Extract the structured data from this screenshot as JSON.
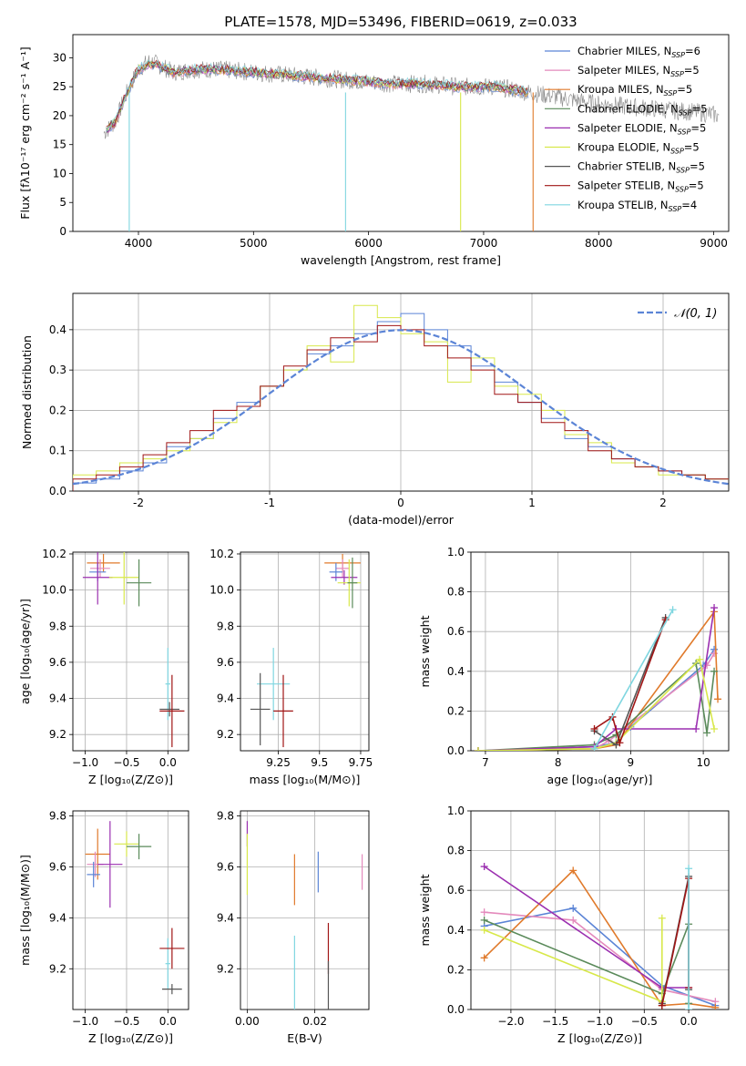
{
  "title": "PLATE=1578, MJD=53496, FIBERID=0619, z=0.033",
  "colors": {
    "Chabrier MILES": "#5b84d6",
    "Salpeter MILES": "#e48abc",
    "Kroupa MILES": "#e07a2b",
    "Chabrier ELODIE": "#5a8a5a",
    "Salpeter ELODIE": "#9b2fb0",
    "Kroupa ELODIE": "#d8e84a",
    "Chabrier STELIB": "#555555",
    "Salpeter STELIB": "#a01515",
    "Kroupa STELIB": "#7fd6e0"
  },
  "chart_data": [
    {
      "id": "spectrum",
      "type": "line",
      "xlabel": "wavelength [Angstrom, rest frame]",
      "ylabel": "Flux [fλ10⁻¹⁷ erg cm⁻² s⁻¹ A⁻¹]",
      "xlim": [
        3430,
        9130
      ],
      "ylim": [
        0,
        34
      ],
      "xticks": [
        4000,
        5000,
        6000,
        7000,
        8000,
        9000
      ],
      "yticks": [
        0,
        5,
        10,
        15,
        20,
        25,
        30
      ],
      "legend_position": "top-right",
      "legend": [
        {
          "name": "Chabrier MILES",
          "label": "Chabrier MILES, N",
          "sub": "SSP",
          "tail": "=6"
        },
        {
          "name": "Salpeter MILES",
          "label": "Salpeter MILES, N",
          "sub": "SSP",
          "tail": "=5"
        },
        {
          "name": "Kroupa MILES",
          "label": "Kroupa MILES, N",
          "sub": "SSP",
          "tail": "=5"
        },
        {
          "name": "Chabrier ELODIE",
          "label": "Chabrier ELODIE, N",
          "sub": "SSP",
          "tail": "=5"
        },
        {
          "name": "Salpeter ELODIE",
          "label": "Salpeter ELODIE, N",
          "sub": "SSP",
          "tail": "=5"
        },
        {
          "name": "Kroupa ELODIE",
          "label": "Kroupa ELODIE, N",
          "sub": "SSP",
          "tail": "=5"
        },
        {
          "name": "Chabrier STELIB",
          "label": "Chabrier STELIB, N",
          "sub": "SSP",
          "tail": "=5"
        },
        {
          "name": "Salpeter STELIB",
          "label": "Salpeter STELIB, N",
          "sub": "SSP",
          "tail": "=5"
        },
        {
          "name": "Kroupa STELIB",
          "label": "Kroupa STELIB, N",
          "sub": "SSP",
          "tail": "=4"
        }
      ],
      "data_spectrum": {
        "x": [
          3700,
          3800,
          3900,
          4000,
          4100,
          4200,
          4300,
          4500,
          4700,
          5000,
          5300,
          5600,
          5900,
          6200,
          6500,
          6800,
          7100,
          7400,
          7700,
          8000,
          8300,
          8600,
          8900,
          9050
        ],
        "y": [
          17,
          19,
          24,
          28,
          29.5,
          28.5,
          27.5,
          28,
          28,
          27.5,
          27,
          26.5,
          26,
          25.5,
          25.5,
          25,
          25,
          24,
          23,
          22,
          21.5,
          21,
          20.5,
          20
        ]
      },
      "model_spectrum": {
        "x": [
          3700,
          3800,
          3900,
          4000,
          4100,
          4200,
          4300,
          4500,
          4700,
          5000,
          5300,
          5600,
          5900,
          6200,
          6500,
          6800,
          7100,
          7400
        ],
        "y": [
          17,
          19,
          24,
          28,
          29,
          28.5,
          27.5,
          28,
          28,
          27.5,
          27,
          26.5,
          26,
          25.5,
          25.5,
          25,
          25,
          24
        ]
      },
      "drop_lines": [
        {
          "series": "Kroupa STELIB",
          "x": 3920
        },
        {
          "series": "Kroupa STELIB",
          "x": 5800
        },
        {
          "series": "Kroupa ELODIE",
          "x": 6800
        },
        {
          "series": "Kroupa MILES",
          "x": 7430
        }
      ]
    },
    {
      "id": "residual",
      "type": "line",
      "xlabel": "(data-model)/error",
      "ylabel": "Normed distribution",
      "xlim": [
        -2.5,
        2.5
      ],
      "ylim": [
        0,
        0.49
      ],
      "xticks": [
        -2,
        -1,
        0,
        1,
        2
      ],
      "yticks": [
        0.0,
        0.1,
        0.2,
        0.3,
        0.4
      ],
      "grid": true,
      "legend": "𝒩(0, 1)",
      "legend_position": "top-right",
      "normal_curve": "N(0,1) pdf",
      "series": [
        {
          "name": "Chabrier MILES",
          "values": [
            0.02,
            0.03,
            0.05,
            0.07,
            0.11,
            0.13,
            0.18,
            0.22,
            0.26,
            0.3,
            0.34,
            0.36,
            0.39,
            0.42,
            0.44,
            0.4,
            0.36,
            0.31,
            0.27,
            0.22,
            0.18,
            0.13,
            0.11,
            0.08,
            0.06,
            0.05,
            0.04,
            0.03
          ]
        },
        {
          "name": "Kroupa ELODIE",
          "values": [
            0.04,
            0.05,
            0.07,
            0.08,
            0.1,
            0.13,
            0.17,
            0.21,
            0.26,
            0.3,
            0.36,
            0.32,
            0.46,
            0.43,
            0.39,
            0.37,
            0.27,
            0.33,
            0.26,
            0.24,
            0.2,
            0.14,
            0.12,
            0.07,
            0.06,
            0.04,
            0.04,
            0.03
          ]
        },
        {
          "name": "Salpeter STELIB",
          "values": [
            0.03,
            0.04,
            0.06,
            0.09,
            0.12,
            0.15,
            0.2,
            0.21,
            0.26,
            0.31,
            0.35,
            0.38,
            0.37,
            0.41,
            0.4,
            0.36,
            0.33,
            0.3,
            0.24,
            0.22,
            0.17,
            0.15,
            0.1,
            0.08,
            0.06,
            0.05,
            0.04,
            0.03
          ]
        }
      ]
    },
    {
      "id": "age-vs-Z",
      "type": "scatter",
      "xlabel": "Z [log₁₀(Z/Z⊙)]",
      "ylabel": "age  [log₁₀(age/yr)]",
      "xlim": [
        -1.15,
        0.25
      ],
      "ylim": [
        9.11,
        10.21
      ],
      "xticks": [
        -1.0,
        -0.5,
        0.0
      ],
      "xticklabels": [
        "−1.0",
        "−0.5",
        "0.0"
      ],
      "yticks": [
        9.2,
        9.4,
        9.6,
        9.8,
        10.0,
        10.2
      ],
      "grid": true,
      "points": [
        {
          "series": "Kroupa MILES",
          "x": -0.78,
          "y": 10.15,
          "xerr": 0.2,
          "yerr": 0.05
        },
        {
          "series": "Salpeter MILES",
          "x": -0.82,
          "y": 10.12,
          "xerr": 0.12,
          "yerr": 0.05
        },
        {
          "series": "Chabrier MILES",
          "x": -0.85,
          "y": 10.1,
          "xerr": 0.1,
          "yerr": 0.05
        },
        {
          "series": "Salpeter ELODIE",
          "x": -0.85,
          "y": 10.07,
          "xerr": 0.18,
          "yerr": 0.15
        },
        {
          "series": "Kroupa ELODIE",
          "x": -0.53,
          "y": 10.07,
          "xerr": 0.18,
          "yerr": 0.15
        },
        {
          "series": "Chabrier ELODIE",
          "x": -0.35,
          "y": 10.04,
          "xerr": 0.15,
          "yerr": 0.13
        },
        {
          "series": "Kroupa STELIB",
          "x": 0.0,
          "y": 9.48,
          "xerr": 0.03,
          "yerr": 0.2
        },
        {
          "series": "Chabrier STELIB",
          "x": 0.02,
          "y": 9.34,
          "xerr": 0.12,
          "yerr": 0.04
        },
        {
          "series": "Salpeter STELIB",
          "x": 0.05,
          "y": 9.33,
          "xerr": 0.15,
          "yerr": 0.2
        }
      ]
    },
    {
      "id": "age-vs-mass",
      "type": "scatter",
      "xlabel": "mass [log₁₀(M/M⊙)]",
      "ylabel": "",
      "xlim": [
        9.02,
        9.8
      ],
      "ylim": [
        9.11,
        10.21
      ],
      "xticks": [
        9.25,
        9.5,
        9.75
      ],
      "yticks": [
        9.2,
        9.4,
        9.6,
        9.8,
        10.0,
        10.2
      ],
      "grid": true,
      "points": [
        {
          "series": "Kroupa MILES",
          "x": 9.64,
          "y": 10.15,
          "xerr": 0.11,
          "yerr": 0.05
        },
        {
          "series": "Salpeter MILES",
          "x": 9.64,
          "y": 10.12,
          "xerr": 0.04,
          "yerr": 0.05
        },
        {
          "series": "Chabrier MILES",
          "x": 9.6,
          "y": 10.1,
          "xerr": 0.04,
          "yerr": 0.05
        },
        {
          "series": "Salpeter ELODIE",
          "x": 9.65,
          "y": 10.07,
          "xerr": 0.08,
          "yerr": 0.04
        },
        {
          "series": "Kroupa ELODIE",
          "x": 9.68,
          "y": 10.04,
          "xerr": 0.07,
          "yerr": 0.13
        },
        {
          "series": "Chabrier ELODIE",
          "x": 9.7,
          "y": 10.04,
          "xerr": 0.03,
          "yerr": 0.14
        },
        {
          "series": "Kroupa STELIB",
          "x": 9.22,
          "y": 9.48,
          "xerr": 0.1,
          "yerr": 0.2
        },
        {
          "series": "Chabrier STELIB",
          "x": 9.14,
          "y": 9.34,
          "xerr": 0.06,
          "yerr": 0.2
        },
        {
          "series": "Salpeter STELIB",
          "x": 9.28,
          "y": 9.33,
          "xerr": 0.06,
          "yerr": 0.2
        }
      ]
    },
    {
      "id": "weight-vs-age",
      "type": "line",
      "xlabel": "age  [log₁₀(age/yr)]",
      "ylabel": "mass weight",
      "xlim": [
        6.8,
        10.35
      ],
      "ylim": [
        0,
        1
      ],
      "xticks": [
        7,
        8,
        9,
        10
      ],
      "yticks": [
        0.0,
        0.2,
        0.4,
        0.6,
        0.8,
        1.0
      ],
      "grid": true,
      "series": [
        {
          "name": "Chabrier MILES",
          "x": [
            6.9,
            8.5,
            8.8,
            9.0,
            10.0,
            10.15
          ],
          "y": [
            0.0,
            0.02,
            0.04,
            0.12,
            0.43,
            0.51
          ]
        },
        {
          "name": "Salpeter MILES",
          "x": [
            6.9,
            8.5,
            8.7,
            10.05,
            10.15
          ],
          "y": [
            0.0,
            0.01,
            0.05,
            0.43,
            0.49
          ]
        },
        {
          "name": "Kroupa MILES",
          "x": [
            6.9,
            8.5,
            8.8,
            10.15,
            10.2
          ],
          "y": [
            0.0,
            0.01,
            0.03,
            0.7,
            0.26
          ]
        },
        {
          "name": "Chabrier ELODIE",
          "x": [
            6.9,
            8.5,
            8.8,
            9.9,
            10.05,
            10.15
          ],
          "y": [
            0.0,
            0.03,
            0.08,
            0.44,
            0.09,
            0.4
          ]
        },
        {
          "name": "Salpeter ELODIE",
          "x": [
            6.9,
            8.5,
            8.8,
            9.9,
            10.15
          ],
          "y": [
            0.0,
            0.02,
            0.11,
            0.11,
            0.72
          ]
        },
        {
          "name": "Kroupa ELODIE",
          "x": [
            6.9,
            8.5,
            8.8,
            9.95,
            10.15
          ],
          "y": [
            0.0,
            0.01,
            0.04,
            0.46,
            0.11
          ]
        },
        {
          "name": "Chabrier STELIB",
          "x": [
            8.5,
            8.8,
            9.48
          ],
          "y": [
            0.1,
            0.03,
            0.67
          ]
        },
        {
          "name": "Salpeter STELIB",
          "x": [
            8.5,
            8.75,
            8.85,
            9.48
          ],
          "y": [
            0.11,
            0.17,
            0.04,
            0.66
          ]
        },
        {
          "name": "Kroupa STELIB",
          "x": [
            8.5,
            9.58
          ],
          "y": [
            0.01,
            0.71
          ]
        }
      ]
    },
    {
      "id": "mass-vs-Z",
      "type": "scatter",
      "xlabel": "Z [log₁₀(Z/Z⊙)]",
      "ylabel": "mass [log₁₀(M/M⊙)]",
      "xlim": [
        -1.15,
        0.25
      ],
      "ylim": [
        9.04,
        9.82
      ],
      "xticks": [
        -1.0,
        -0.5,
        0.0
      ],
      "xticklabels": [
        "−1.0",
        "−0.5",
        "0.0"
      ],
      "yticks": [
        9.2,
        9.4,
        9.6,
        9.8
      ],
      "grid": true,
      "points": [
        {
          "series": "Kroupa MILES",
          "x": -0.85,
          "y": 9.65,
          "xerr": 0.15,
          "yerr": 0.1
        },
        {
          "series": "Salpeter MILES",
          "x": -0.88,
          "y": 9.61,
          "xerr": 0.1,
          "yerr": 0.05
        },
        {
          "series": "Chabrier MILES",
          "x": -0.9,
          "y": 9.57,
          "xerr": 0.08,
          "yerr": 0.05
        },
        {
          "series": "Salpeter ELODIE",
          "x": -0.7,
          "y": 9.61,
          "xerr": 0.15,
          "yerr": 0.17
        },
        {
          "series": "Kroupa ELODIE",
          "x": -0.5,
          "y": 9.69,
          "xerr": 0.15,
          "yerr": 0.05
        },
        {
          "series": "Chabrier ELODIE",
          "x": -0.35,
          "y": 9.68,
          "xerr": 0.15,
          "yerr": 0.05
        },
        {
          "series": "Kroupa STELIB",
          "x": 0.0,
          "y": 9.22,
          "xerr": 0.03,
          "yerr": 0.1
        },
        {
          "series": "Salpeter STELIB",
          "x": 0.05,
          "y": 9.28,
          "xerr": 0.15,
          "yerr": 0.08
        },
        {
          "series": "Chabrier STELIB",
          "x": 0.05,
          "y": 9.12,
          "xerr": 0.12,
          "yerr": 0.02
        }
      ]
    },
    {
      "id": "mass-vs-EBV",
      "type": "scatter",
      "xlabel": "E(B-V)",
      "ylabel": "",
      "xlim": [
        -0.002,
        0.036
      ],
      "ylim": [
        9.04,
        9.82
      ],
      "xticks": [
        0.0,
        0.02
      ],
      "xticklabels": [
        "0.00",
        "0.02"
      ],
      "yticks": [
        9.2,
        9.4,
        9.6,
        9.8
      ],
      "grid": true,
      "points": [
        {
          "series": "Salpeter ELODIE",
          "x": 0.0,
          "y": 9.73,
          "xerr": 0.0,
          "yerr": 0.05
        },
        {
          "series": "Kroupa ELODIE",
          "x": 0.0,
          "y": 9.61,
          "xerr": 0.0,
          "yerr": 0.12
        },
        {
          "series": "Kroupa MILES",
          "x": 0.014,
          "y": 9.55,
          "xerr": 0.0,
          "yerr": 0.1
        },
        {
          "series": "Chabrier MILES",
          "x": 0.021,
          "y": 9.58,
          "xerr": 0.0,
          "yerr": 0.08
        },
        {
          "series": "Salpeter MILES",
          "x": 0.034,
          "y": 9.58,
          "xerr": 0.0,
          "yerr": 0.07
        },
        {
          "series": "Kroupa STELIB",
          "x": 0.014,
          "y": 9.18,
          "xerr": 0.0,
          "yerr": 0.15
        },
        {
          "series": "Salpeter STELIB",
          "x": 0.024,
          "y": 9.28,
          "xerr": 0.0,
          "yerr": 0.1
        },
        {
          "series": "Chabrier STELIB",
          "x": 0.024,
          "y": 9.13,
          "xerr": 0.0,
          "yerr": 0.1
        }
      ]
    },
    {
      "id": "weight-vs-Z",
      "type": "line",
      "xlabel": "Z [log₁₀(Z/Z⊙)]",
      "ylabel": "mass weight",
      "xlim": [
        -2.45,
        0.45
      ],
      "ylim": [
        0,
        1
      ],
      "xticks": [
        -2.0,
        -1.5,
        -1.0,
        -0.5,
        0.0
      ],
      "xticklabels": [
        "−2.0",
        "−1.5",
        "−1.0",
        "−0.5",
        "0.0"
      ],
      "yticks": [
        0.0,
        0.2,
        0.4,
        0.6,
        0.8,
        1.0
      ],
      "grid": true,
      "series": [
        {
          "name": "Chabrier MILES",
          "x": [
            -2.3,
            -1.3,
            -0.3,
            0.3
          ],
          "y": [
            0.42,
            0.51,
            0.12,
            0.02
          ]
        },
        {
          "name": "Salpeter MILES",
          "x": [
            -2.3,
            -1.3,
            -0.3,
            0.3
          ],
          "y": [
            0.49,
            0.45,
            0.1,
            0.04
          ]
        },
        {
          "name": "Kroupa MILES",
          "x": [
            -2.3,
            -1.3,
            -0.3,
            0.0,
            0.3
          ],
          "y": [
            0.26,
            0.7,
            0.02,
            0.03,
            0.01
          ]
        },
        {
          "name": "Chabrier ELODIE",
          "x": [
            -2.3,
            -0.3,
            0.0,
            0.0
          ],
          "y": [
            0.45,
            0.08,
            0.43,
            0.03
          ]
        },
        {
          "name": "Salpeter ELODIE",
          "x": [
            -2.3,
            -0.3,
            0.0
          ],
          "y": [
            0.72,
            0.11,
            0.11
          ]
        },
        {
          "name": "Kroupa ELODIE",
          "x": [
            -2.3,
            -0.3,
            -0.3
          ],
          "y": [
            0.4,
            0.04,
            0.46
          ]
        },
        {
          "name": "Chabrier STELIB",
          "x": [
            -0.3,
            0.0,
            0.0
          ],
          "y": [
            0.03,
            0.67,
            0.1
          ]
        },
        {
          "name": "Salpeter STELIB",
          "x": [
            -0.3,
            0.0,
            0.0
          ],
          "y": [
            0.02,
            0.66,
            0.11
          ]
        },
        {
          "name": "Kroupa STELIB",
          "x": [
            0.0,
            0.0
          ],
          "y": [
            0.0,
            0.71
          ]
        }
      ]
    }
  ]
}
